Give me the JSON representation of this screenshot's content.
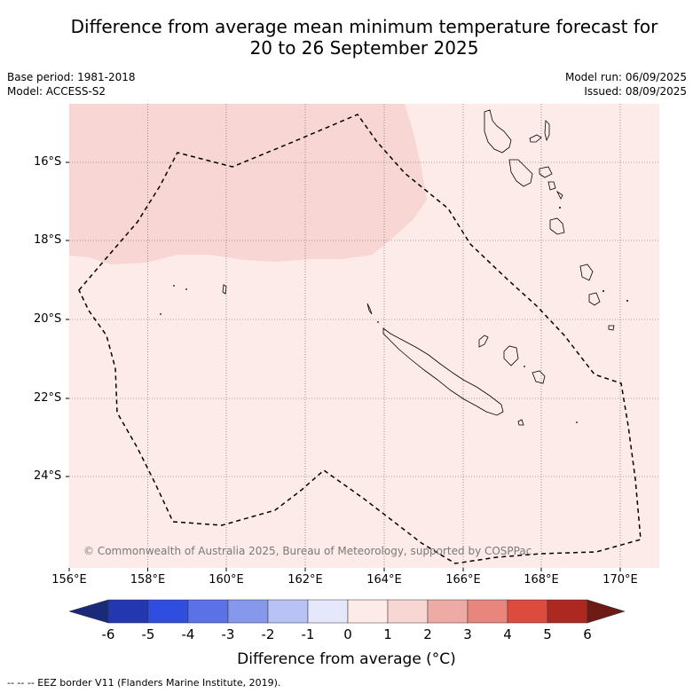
{
  "title": {
    "line1": "Difference from average mean minimum temperature forecast for",
    "line2": "20 to 26 September 2025"
  },
  "meta": {
    "base_period": "Base period: 1981-2018",
    "model": "Model: ACCESS-S2",
    "model_run": "Model run: 06/09/2025",
    "issued": "Issued: 08/09/2025"
  },
  "axes": {
    "lon_labels": [
      "156°E",
      "158°E",
      "160°E",
      "162°E",
      "164°E",
      "166°E",
      "168°E",
      "170°E"
    ],
    "lat_labels": [
      "16°S",
      "18°S",
      "20°S",
      "22°S",
      "24°S"
    ]
  },
  "copyright": "© Commonwealth of Australia 2025, Bureau of Meteorology, supported by COSPPac",
  "colorbar": {
    "ticks": [
      "-6",
      "-5",
      "-4",
      "-3",
      "-2",
      "-1",
      "0",
      "1",
      "2",
      "3",
      "4",
      "5",
      "6"
    ],
    "colors": [
      "#1a2a78",
      "#2338b0",
      "#2f4ee0",
      "#5a72e6",
      "#8598ec",
      "#b8c2f4",
      "#e4e8fa",
      "#fcebe9",
      "#f7d6d3",
      "#eeaba5",
      "#e8857d",
      "#dd4a3e",
      "#ad2820",
      "#6e1a15"
    ],
    "label": "Difference from average (°C)"
  },
  "regions": {
    "background_anomaly": "0 to 1",
    "northwest_anomaly": "1 to 2"
  },
  "footer": "--  --  -- EEZ border V11 (Flanders Marine Institute, 2019)."
}
